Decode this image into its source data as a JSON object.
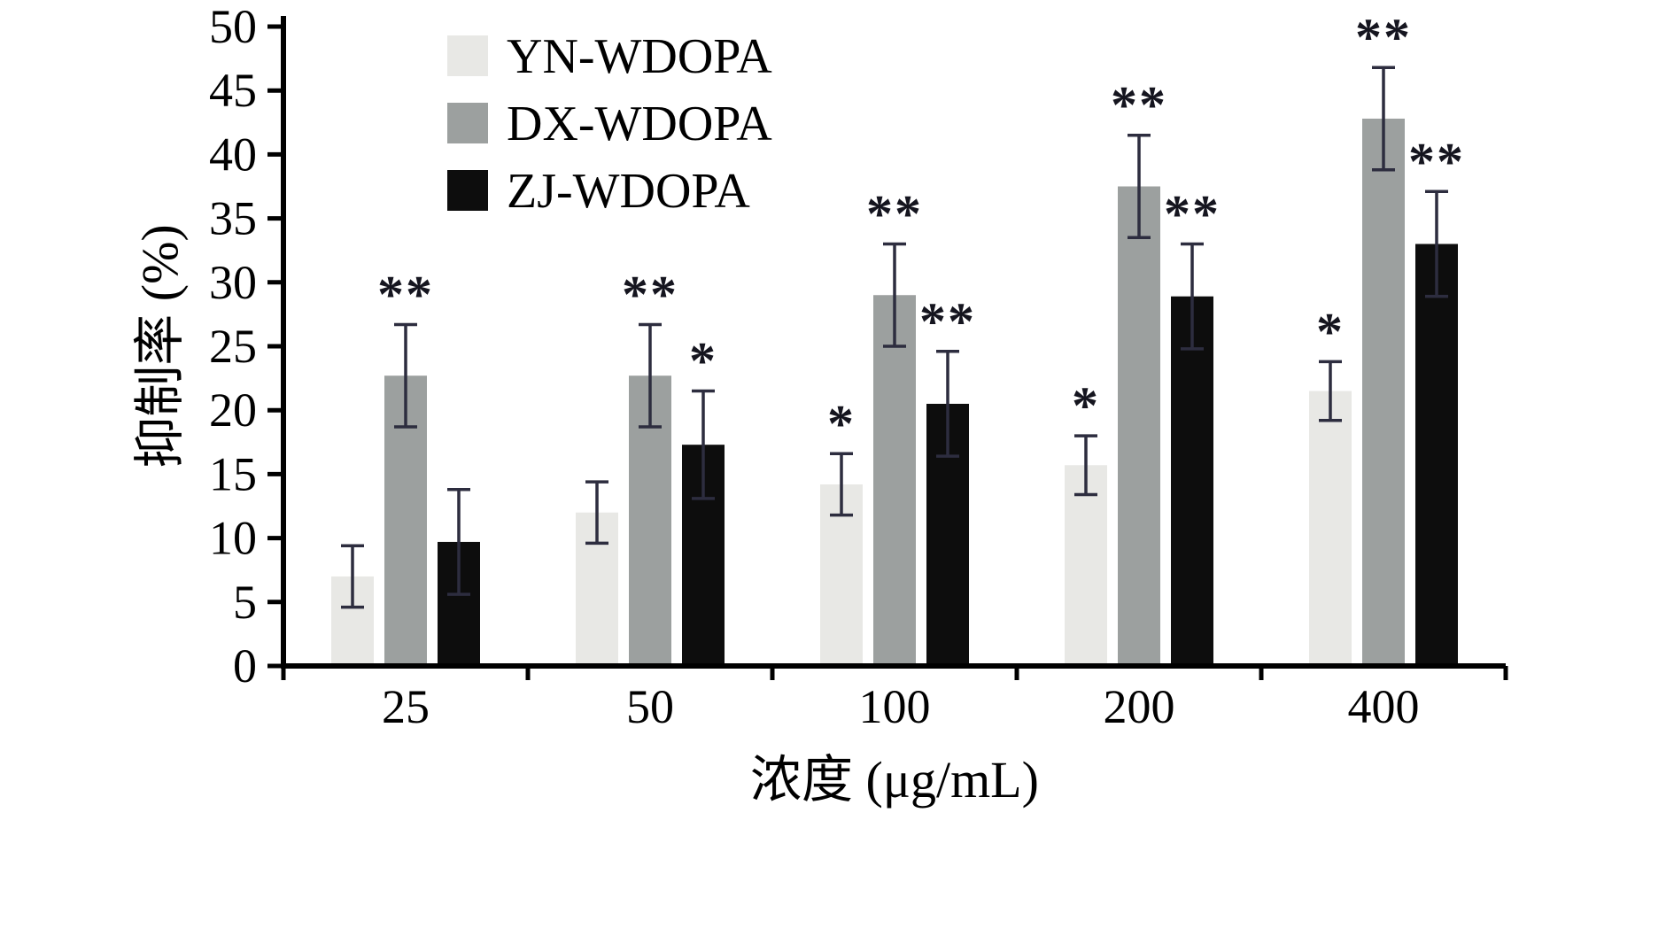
{
  "figure": {
    "background": "#ffffff"
  },
  "chart_data": {
    "type": "bar",
    "title": "",
    "xlabel": "浓度 (μg/mL)",
    "ylabel": "抑制率 (%)",
    "categories": [
      "25",
      "50",
      "100",
      "200",
      "400"
    ],
    "ylim": [
      0,
      50
    ],
    "ytick_step": 5,
    "grid": false,
    "legend_position": "top-left-inside",
    "axis_color": "#000000",
    "error_bar_color": "#2d2d3f",
    "significance_note": "asterisks mark statistical significance above error bars",
    "series": [
      {
        "name": "YN-WDOPA",
        "color": "#e8e8e5",
        "values": [
          7.0,
          12.0,
          14.2,
          15.7,
          21.5
        ],
        "errors": [
          2.4,
          2.4,
          2.4,
          2.3,
          2.3
        ],
        "significance": [
          "",
          "",
          "*",
          "*",
          "*"
        ]
      },
      {
        "name": "DX-WDOPA",
        "color": "#9ca09f",
        "values": [
          22.7,
          22.7,
          29.0,
          37.5,
          42.8
        ],
        "errors": [
          4.0,
          4.0,
          4.0,
          4.0,
          4.0
        ],
        "significance": [
          "**",
          "**",
          "**",
          "**",
          "**"
        ]
      },
      {
        "name": "ZJ-WDOPA",
        "color": "#0d0d0d",
        "values": [
          9.7,
          17.3,
          20.5,
          28.9,
          33.0
        ],
        "errors": [
          4.1,
          4.2,
          4.1,
          4.1,
          4.1
        ],
        "significance": [
          "",
          "*",
          "**",
          "**",
          "**"
        ]
      }
    ]
  }
}
